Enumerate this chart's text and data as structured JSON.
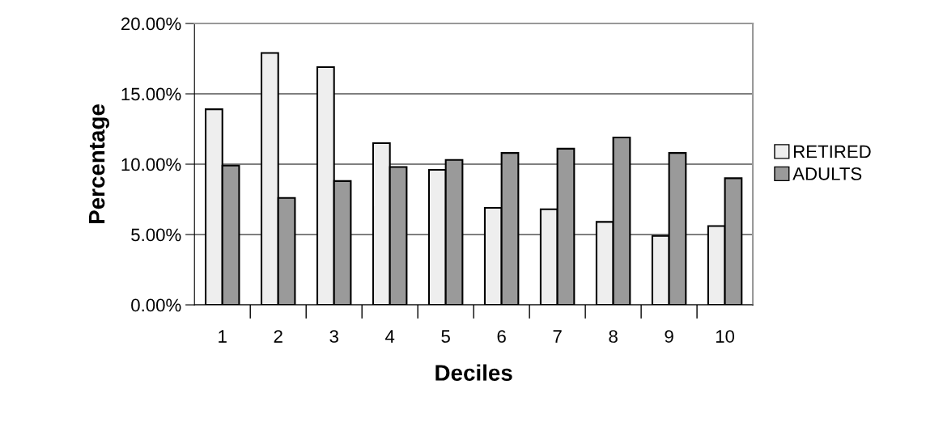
{
  "chart_data": {
    "type": "bar",
    "xlabel": "Deciles",
    "ylabel": "Percentage",
    "categories": [
      "1",
      "2",
      "3",
      "4",
      "5",
      "6",
      "7",
      "8",
      "9",
      "10"
    ],
    "series": [
      {
        "name": "RETIRED",
        "color": "#eeeeee",
        "values": [
          13.9,
          17.9,
          16.9,
          11.5,
          9.6,
          6.9,
          6.8,
          5.9,
          4.9,
          5.6
        ]
      },
      {
        "name": "ADULTS",
        "color": "#9a9a9a",
        "values": [
          9.9,
          7.6,
          8.8,
          9.8,
          10.3,
          10.8,
          11.1,
          11.9,
          10.8,
          9.0
        ]
      }
    ],
    "ylim": [
      0,
      20
    ],
    "yticks": [
      {
        "value": 0,
        "label": "0.00%"
      },
      {
        "value": 5,
        "label": "5.00%"
      },
      {
        "value": 10,
        "label": "10.00%"
      },
      {
        "value": 15,
        "label": "15.00%"
      },
      {
        "value": 20,
        "label": "20.00%"
      }
    ],
    "grid": "y",
    "legend": "right"
  }
}
